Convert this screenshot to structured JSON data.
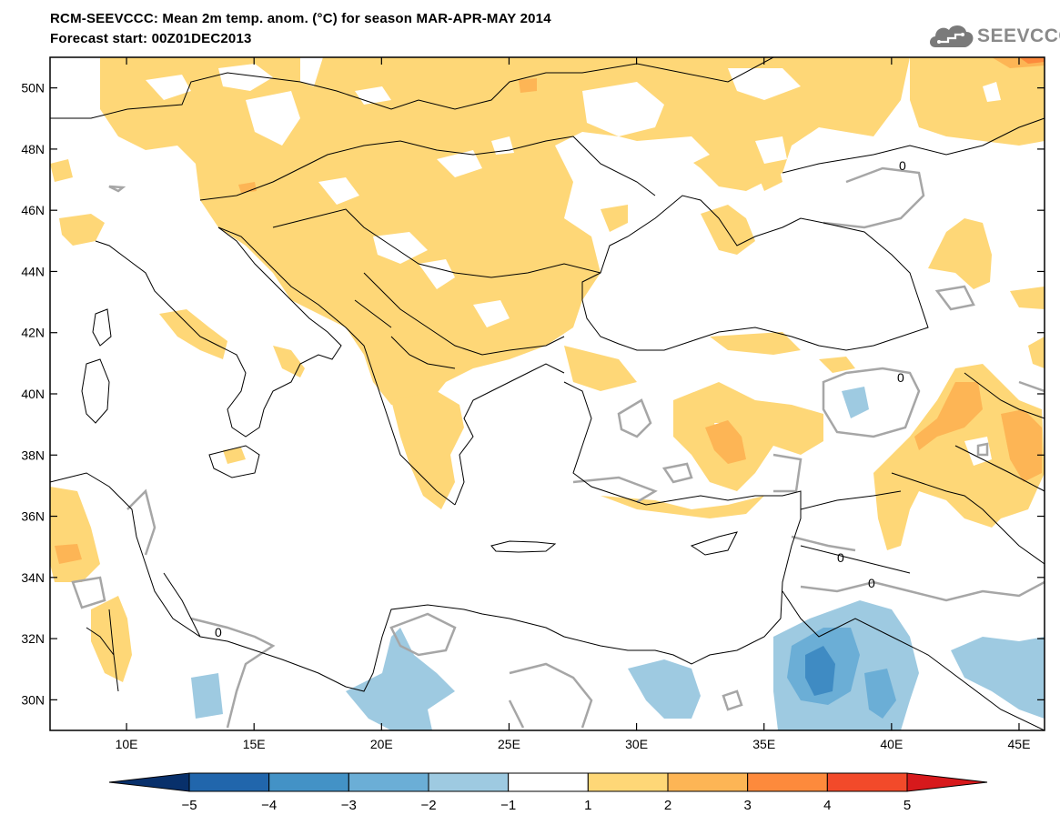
{
  "header": {
    "title_line1": "RCM-SEEVCCC: Mean 2m temp. anom. (°C) for season MAR-APR-MAY 2014",
    "title_line2": "Forecast start: 00Z01DEC2013",
    "logo_text": "SEEVCCC",
    "logo_icon": "cloud-logo-icon"
  },
  "map": {
    "lon_range": [
      7,
      46
    ],
    "lat_range": [
      29,
      51
    ],
    "lat_ticks": [
      "50N",
      "48N",
      "46N",
      "44N",
      "42N",
      "40N",
      "38N",
      "36N",
      "34N",
      "32N",
      "30N"
    ],
    "lon_ticks": [
      "10E",
      "15E",
      "20E",
      "25E",
      "30E",
      "35E",
      "40E",
      "45E"
    ],
    "contour_label": "0",
    "colors": {
      "warm1": "#fed777",
      "warm2": "#fdb555",
      "warm3": "#fd8a3c",
      "cold1": "#9ecae1",
      "cold2": "#6baed6",
      "cold3": "#3f8bc3",
      "contour": "#a6a6a6",
      "border": "#000000"
    }
  },
  "colorbar": {
    "labels": [
      "−5",
      "−4",
      "−3",
      "−2",
      "−1",
      "1",
      "2",
      "3",
      "4",
      "5"
    ],
    "colors": [
      "#08306b",
      "#2166ac",
      "#4392c6",
      "#6baed6",
      "#9ecae1",
      "#ffffff",
      "#fed777",
      "#fdb555",
      "#fd8a3c",
      "#f24a2a",
      "#d7191c"
    ]
  }
}
